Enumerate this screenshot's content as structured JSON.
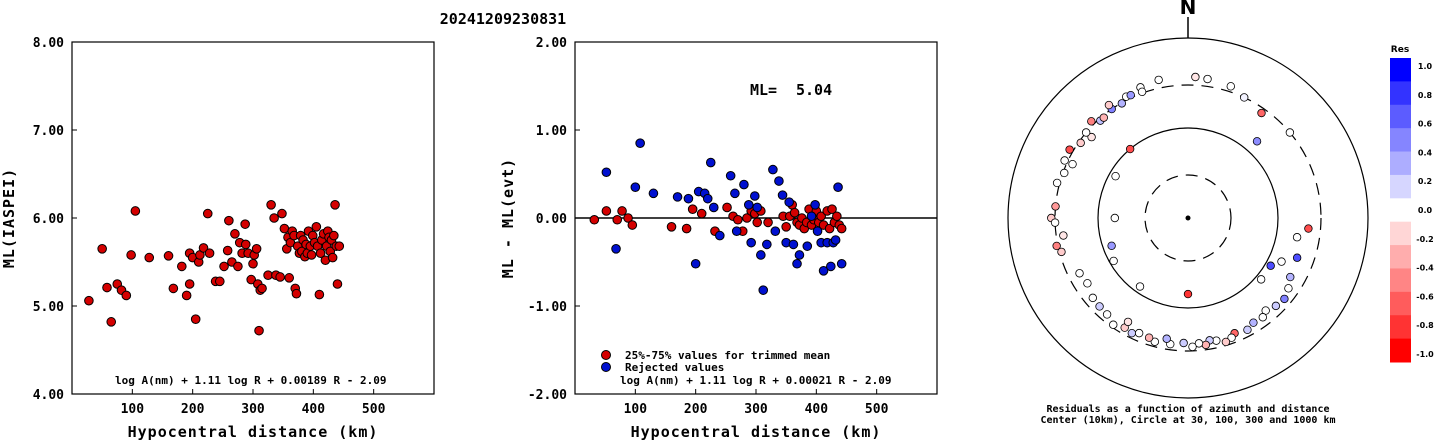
{
  "title": "20241209230831",
  "chart_data": [
    {
      "type": "scatter",
      "ylabel": "ML(IASPEI)",
      "xlabel": "Hypocentral distance (km)",
      "xlim": [
        0,
        600
      ],
      "ylim": [
        4.0,
        8.0
      ],
      "xticks": [
        "100",
        "200",
        "300",
        "400",
        "500"
      ],
      "yticks": [
        "4.00",
        "5.00",
        "6.00",
        "7.00",
        "8.00"
      ],
      "formula": "log A(nm) + 1.11 log R + 0.00189 R - 2.09",
      "marker_color": "#d40000",
      "points": [
        [
          28,
          5.06
        ],
        [
          50,
          5.65
        ],
        [
          58,
          5.21
        ],
        [
          65,
          4.82
        ],
        [
          75,
          5.25
        ],
        [
          82,
          5.18
        ],
        [
          90,
          5.12
        ],
        [
          98,
          5.58
        ],
        [
          105,
          6.08
        ],
        [
          128,
          5.55
        ],
        [
          160,
          5.57
        ],
        [
          168,
          5.2
        ],
        [
          182,
          5.45
        ],
        [
          190,
          5.12
        ],
        [
          195,
          5.25
        ],
        [
          195,
          5.6
        ],
        [
          200,
          5.55
        ],
        [
          205,
          4.85
        ],
        [
          210,
          5.5
        ],
        [
          212,
          5.58
        ],
        [
          218,
          5.66
        ],
        [
          225,
          6.05
        ],
        [
          228,
          5.6
        ],
        [
          238,
          5.28
        ],
        [
          245,
          5.28
        ],
        [
          252,
          5.45
        ],
        [
          258,
          5.63
        ],
        [
          260,
          5.97
        ],
        [
          265,
          5.5
        ],
        [
          270,
          5.82
        ],
        [
          275,
          5.45
        ],
        [
          278,
          5.72
        ],
        [
          282,
          5.6
        ],
        [
          287,
          5.93
        ],
        [
          288,
          5.7
        ],
        [
          292,
          5.6
        ],
        [
          297,
          5.3
        ],
        [
          300,
          5.48
        ],
        [
          302,
          5.58
        ],
        [
          306,
          5.65
        ],
        [
          308,
          5.25
        ],
        [
          310,
          4.72
        ],
        [
          312,
          5.18
        ],
        [
          315,
          5.2
        ],
        [
          325,
          5.35
        ],
        [
          330,
          6.15
        ],
        [
          335,
          6.0
        ],
        [
          338,
          5.35
        ],
        [
          345,
          5.33
        ],
        [
          348,
          6.05
        ],
        [
          352,
          5.88
        ],
        [
          356,
          5.65
        ],
        [
          358,
          5.78
        ],
        [
          360,
          5.32
        ],
        [
          362,
          5.72
        ],
        [
          365,
          5.85
        ],
        [
          368,
          5.8
        ],
        [
          370,
          5.2
        ],
        [
          372,
          5.14
        ],
        [
          374,
          5.68
        ],
        [
          377,
          5.6
        ],
        [
          379,
          5.8
        ],
        [
          381,
          5.62
        ],
        [
          383,
          5.75
        ],
        [
          386,
          5.56
        ],
        [
          388,
          5.7
        ],
        [
          390,
          5.6
        ],
        [
          392,
          5.85
        ],
        [
          395,
          5.68
        ],
        [
          397,
          5.58
        ],
        [
          399,
          5.8
        ],
        [
          402,
          5.72
        ],
        [
          405,
          5.9
        ],
        [
          407,
          5.68
        ],
        [
          410,
          5.13
        ],
        [
          412,
          5.6
        ],
        [
          414,
          5.75
        ],
        [
          417,
          5.82
        ],
        [
          420,
          5.52
        ],
        [
          422,
          5.68
        ],
        [
          424,
          5.85
        ],
        [
          426,
          5.78
        ],
        [
          428,
          5.62
        ],
        [
          430,
          5.75
        ],
        [
          432,
          5.55
        ],
        [
          434,
          5.8
        ],
        [
          436,
          6.15
        ],
        [
          438,
          5.68
        ],
        [
          440,
          5.25
        ],
        [
          443,
          5.68
        ]
      ]
    },
    {
      "type": "scatter",
      "ylabel": "ML - ML(evt)",
      "xlabel": "Hypocentral distance (km)",
      "xlim": [
        0,
        600
      ],
      "ylim": [
        -2.0,
        2.0
      ],
      "xticks": [
        "100",
        "200",
        "300",
        "400",
        "500"
      ],
      "yticks": [
        "-2.00",
        "-1.00",
        "0.00",
        "1.00",
        "2.00"
      ],
      "ml_label": "ML=",
      "ml_value": "5.04",
      "legend": [
        {
          "label": "25%-75% values for trimmed mean",
          "color": "#d40000"
        },
        {
          "label": "Rejected values",
          "color": "#0010d0"
        }
      ],
      "formula": "log A(nm) + 1.11 log R + 0.00021 R - 2.09",
      "series": [
        {
          "color": "#d40000",
          "points": [
            [
              32,
              -0.02
            ],
            [
              52,
              0.08
            ],
            [
              70,
              -0.02
            ],
            [
              78,
              0.08
            ],
            [
              88,
              0.0
            ],
            [
              95,
              -0.08
            ],
            [
              160,
              -0.1
            ],
            [
              185,
              -0.12
            ],
            [
              195,
              0.1
            ],
            [
              210,
              0.05
            ],
            [
              232,
              -0.15
            ],
            [
              252,
              0.12
            ],
            [
              262,
              0.02
            ],
            [
              270,
              -0.02
            ],
            [
              278,
              -0.15
            ],
            [
              285,
              0.0
            ],
            [
              292,
              0.08
            ],
            [
              298,
              0.05
            ],
            [
              302,
              -0.05
            ],
            [
              308,
              0.08
            ],
            [
              320,
              -0.05
            ],
            [
              345,
              0.02
            ],
            [
              350,
              -0.1
            ],
            [
              356,
              0.02
            ],
            [
              360,
              0.15
            ],
            [
              364,
              0.06
            ],
            [
              368,
              -0.05
            ],
            [
              372,
              -0.08
            ],
            [
              376,
              0.0
            ],
            [
              380,
              -0.12
            ],
            [
              384,
              -0.05
            ],
            [
              388,
              0.1
            ],
            [
              392,
              -0.08
            ],
            [
              396,
              -0.02
            ],
            [
              400,
              0.08
            ],
            [
              404,
              -0.05
            ],
            [
              408,
              0.02
            ],
            [
              412,
              -0.08
            ],
            [
              418,
              0.08
            ],
            [
              422,
              -0.12
            ],
            [
              426,
              0.1
            ],
            [
              430,
              -0.05
            ],
            [
              434,
              0.02
            ],
            [
              438,
              -0.08
            ],
            [
              442,
              -0.12
            ]
          ]
        },
        {
          "color": "#0010d0",
          "points": [
            [
              52,
              0.52
            ],
            [
              68,
              -0.35
            ],
            [
              100,
              0.35
            ],
            [
              108,
              0.85
            ],
            [
              130,
              0.28
            ],
            [
              170,
              0.24
            ],
            [
              188,
              0.22
            ],
            [
              200,
              -0.52
            ],
            [
              205,
              0.3
            ],
            [
              215,
              0.28
            ],
            [
              220,
              0.22
            ],
            [
              225,
              0.63
            ],
            [
              230,
              0.12
            ],
            [
              240,
              -0.2
            ],
            [
              258,
              0.48
            ],
            [
              265,
              0.28
            ],
            [
              268,
              -0.15
            ],
            [
              280,
              0.38
            ],
            [
              288,
              0.15
            ],
            [
              292,
              -0.28
            ],
            [
              298,
              0.25
            ],
            [
              302,
              0.12
            ],
            [
              308,
              -0.42
            ],
            [
              312,
              -0.82
            ],
            [
              318,
              -0.3
            ],
            [
              328,
              0.55
            ],
            [
              332,
              -0.15
            ],
            [
              338,
              0.42
            ],
            [
              344,
              0.26
            ],
            [
              350,
              -0.28
            ],
            [
              355,
              0.18
            ],
            [
              362,
              -0.3
            ],
            [
              368,
              -0.52
            ],
            [
              372,
              -0.42
            ],
            [
              385,
              -0.32
            ],
            [
              392,
              0.02
            ],
            [
              398,
              0.15
            ],
            [
              402,
              -0.15
            ],
            [
              408,
              -0.28
            ],
            [
              412,
              -0.6
            ],
            [
              418,
              -0.28
            ],
            [
              424,
              -0.55
            ],
            [
              428,
              -0.28
            ],
            [
              432,
              -0.25
            ],
            [
              436,
              0.35
            ],
            [
              442,
              -0.52
            ]
          ]
        }
      ]
    }
  ],
  "polar": {
    "north_label": "N",
    "caption_line1": "Residuals as a function of azimuth and distance",
    "caption_line2": "Center (10km), Circle at 30, 100, 300 and 1000 km",
    "colorbar_title": "Res",
    "colorbar_labels": [
      "1.0",
      "0.8",
      "0.6",
      "0.4",
      "0.2",
      "0.0",
      "-0.2",
      "-0.4",
      "-0.6",
      "-0.8",
      "-1.0"
    ],
    "colorbar_colors": [
      "#0000ff",
      "#3333ff",
      "#5c5cff",
      "#8585ff",
      "#adadff",
      "#d6d6ff",
      "#ffffff",
      "#ffd6d6",
      "#ffadad",
      "#ff8585",
      "#ff5c5c",
      "#ff3333",
      "#ff0000"
    ],
    "stations": [
      {
        "az": 3,
        "dist": 370,
        "res": -0.1
      },
      {
        "az": 8,
        "dist": 362,
        "res": 0.0
      },
      {
        "az": 18,
        "dist": 345,
        "res": 0.0
      },
      {
        "az": 25,
        "dist": 300,
        "res": 0.05
      },
      {
        "az": 35,
        "dist": 265,
        "res": -0.6
      },
      {
        "az": 42,
        "dist": 140,
        "res": 0.45
      },
      {
        "az": 50,
        "dist": 300,
        "res": 0.0
      },
      {
        "az": 320,
        "dist": 100,
        "res": -0.7
      },
      {
        "az": 300,
        "dist": 85,
        "res": 0.0
      },
      {
        "az": 295,
        "dist": 260,
        "res": 0.0
      },
      {
        "az": 310,
        "dist": 250,
        "res": -0.1
      },
      {
        "az": 318,
        "dist": 285,
        "res": 0.25
      },
      {
        "az": 325,
        "dist": 300,
        "res": 0.5
      },
      {
        "az": 333,
        "dist": 325,
        "res": 0.0
      },
      {
        "az": 340,
        "dist": 350,
        "res": 0.0
      },
      {
        "az": 348,
        "dist": 370,
        "res": 0.0
      },
      {
        "az": 315,
        "dist": 330,
        "res": -0.5
      },
      {
        "az": 305,
        "dist": 285,
        "res": -0.2
      },
      {
        "az": 300,
        "dist": 330,
        "res": -0.7
      },
      {
        "az": 290,
        "dist": 290,
        "res": 0.0
      },
      {
        "az": 285,
        "dist": 320,
        "res": 0.0
      },
      {
        "az": 275,
        "dist": 300,
        "res": -0.4
      },
      {
        "az": 270,
        "dist": 330,
        "res": -0.2
      },
      {
        "az": 268,
        "dist": 300,
        "res": 0.0
      },
      {
        "az": 262,
        "dist": 250,
        "res": -0.1
      },
      {
        "az": 258,
        "dist": 310,
        "res": -0.5
      },
      {
        "az": 255,
        "dist": 285,
        "res": -0.2
      },
      {
        "az": 295,
        "dist": 325,
        "res": 0.0
      },
      {
        "az": 310,
        "dist": 300,
        "res": 0.0
      },
      {
        "az": 320,
        "dist": 285,
        "res": -0.3
      },
      {
        "az": 330,
        "dist": 295,
        "res": 0.3
      },
      {
        "az": 335,
        "dist": 320,
        "res": 0.4
      },
      {
        "az": 340,
        "dist": 310,
        "res": 0.0
      },
      {
        "az": 325,
        "dist": 340,
        "res": -0.2
      },
      {
        "az": 270,
        "dist": 65,
        "res": 0.0
      },
      {
        "az": 240,
        "dist": 90,
        "res": 0.0
      },
      {
        "az": 250,
        "dist": 80,
        "res": 0.4
      },
      {
        "az": 215,
        "dist": 85,
        "res": 0.0
      },
      {
        "az": 180,
        "dist": 70,
        "res": -0.8
      },
      {
        "az": 115,
        "dist": 140,
        "res": 0.0
      },
      {
        "az": 95,
        "dist": 220,
        "res": -0.7
      },
      {
        "az": 100,
        "dist": 170,
        "res": 0.0
      },
      {
        "az": 120,
        "dist": 115,
        "res": 0.7
      },
      {
        "az": 130,
        "dist": 115,
        "res": 0.0
      },
      {
        "az": 110,
        "dist": 195,
        "res": 0.7
      },
      {
        "az": 120,
        "dist": 205,
        "res": 0.3
      },
      {
        "az": 125,
        "dist": 230,
        "res": 0.0
      },
      {
        "az": 130,
        "dist": 250,
        "res": 0.5
      },
      {
        "az": 135,
        "dist": 240,
        "res": 0.2
      },
      {
        "az": 140,
        "dist": 220,
        "res": 0.0
      },
      {
        "az": 143,
        "dist": 240,
        "res": 0.0
      },
      {
        "az": 148,
        "dist": 235,
        "res": 0.3
      },
      {
        "az": 152,
        "dist": 255,
        "res": 0.2
      },
      {
        "az": 158,
        "dist": 240,
        "res": -0.6
      },
      {
        "az": 160,
        "dist": 260,
        "res": 0.0
      },
      {
        "az": 163,
        "dist": 275,
        "res": -0.2
      },
      {
        "az": 167,
        "dist": 250,
        "res": 0.0
      },
      {
        "az": 170,
        "dist": 240,
        "res": 0.2
      },
      {
        "az": 172,
        "dist": 265,
        "res": -0.3
      },
      {
        "az": 175,
        "dist": 250,
        "res": 0.0
      },
      {
        "az": 178,
        "dist": 270,
        "res": 0.0
      },
      {
        "az": 182,
        "dist": 245,
        "res": 0.2
      },
      {
        "az": 188,
        "dist": 260,
        "res": 0.0
      },
      {
        "az": 190,
        "dist": 230,
        "res": 0.3
      },
      {
        "az": 195,
        "dist": 265,
        "res": 0.0
      },
      {
        "az": 198,
        "dist": 250,
        "res": -0.3
      },
      {
        "az": 203,
        "dist": 245,
        "res": 0.0
      },
      {
        "az": 206,
        "dist": 265,
        "res": 0.2
      },
      {
        "az": 210,
        "dist": 255,
        "res": -0.2
      },
      {
        "az": 215,
        "dist": 280,
        "res": 0.0
      },
      {
        "az": 220,
        "dist": 250,
        "res": 0.0
      },
      {
        "az": 225,
        "dist": 245,
        "res": 0.2
      },
      {
        "az": 230,
        "dist": 240,
        "res": 0.0
      },
      {
        "az": 237,
        "dist": 215,
        "res": 0.0
      },
      {
        "az": 243,
        "dist": 225,
        "res": 0.0
      },
      {
        "az": 210,
        "dist": 215,
        "res": -0.1
      }
    ]
  }
}
